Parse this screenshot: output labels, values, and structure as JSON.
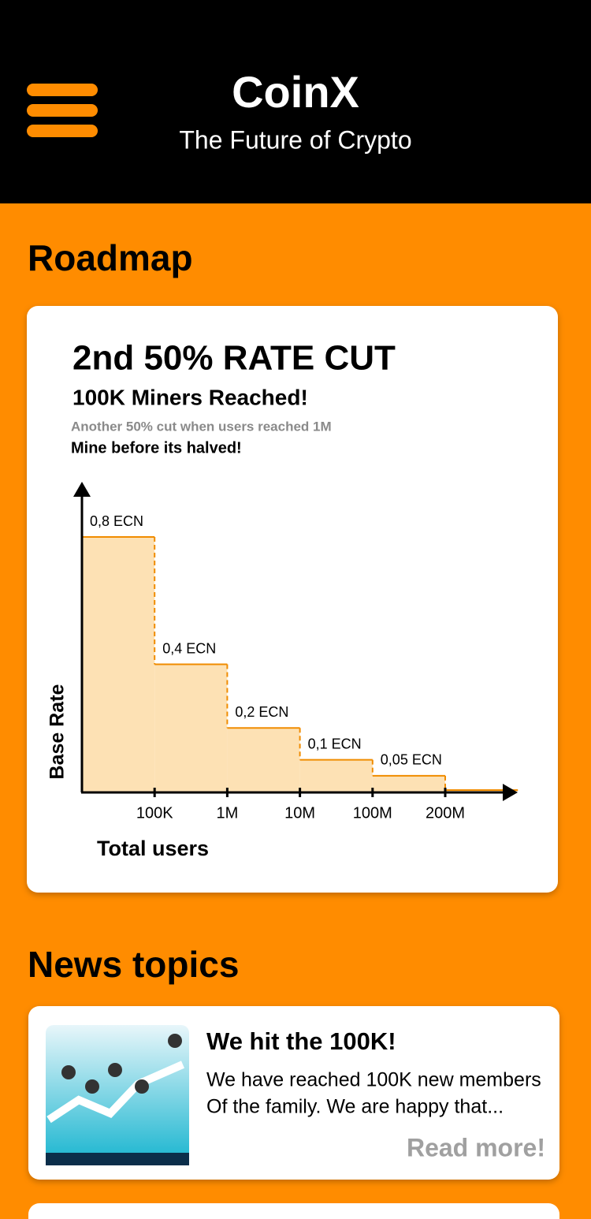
{
  "header": {
    "title": "CoinX",
    "subtitle": "The Future of Crypto"
  },
  "roadmap": {
    "heading": "Roadmap",
    "card": {
      "title": "2nd 50% RATE CUT",
      "subtitle": "100K Miners Reached!",
      "note": "Another 50% cut when users reached 1M",
      "call": "Mine before its halved!"
    }
  },
  "chart_data": {
    "type": "step",
    "y_label": "Base Rate",
    "x_label": "Total users",
    "x_ticks": [
      "100K",
      "1M",
      "10M",
      "100M",
      "200M"
    ],
    "values": [
      0.8,
      0.4,
      0.2,
      0.1,
      0.05,
      0.005
    ],
    "value_labels": [
      "0,8 ECN",
      "0,4 ECN",
      "0,2 ECN",
      "0,1 ECN",
      "0,05 ECN",
      null
    ],
    "ylim": [
      0,
      0.8
    ],
    "line_color": "#f08c00",
    "fill_color": "#fde1b4"
  },
  "news": {
    "heading": "News topics",
    "items": [
      {
        "title": "We hit the 100K!",
        "lines": [
          "We have reached 100K new members",
          "Of the family. We are happy that..."
        ],
        "link": "Read more!"
      }
    ]
  }
}
